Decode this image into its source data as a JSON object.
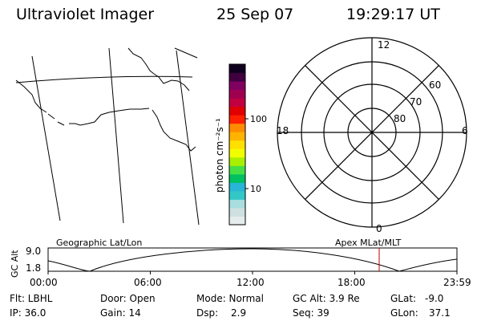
{
  "header": {
    "instrument": "Ultraviolet Imager",
    "date": "25 Sep 07",
    "time": "19:29:17 UT"
  },
  "colorbar": {
    "unit_label": "photon cm⁻²s⁻¹",
    "tick_100": "100",
    "tick_10": "10",
    "colors": [
      "#e6ecec",
      "#cfe0e0",
      "#a8dede",
      "#34c7c7",
      "#29b6d6",
      "#00c060",
      "#46e046",
      "#a8f000",
      "#f0ff00",
      "#ffe000",
      "#ffb400",
      "#ff8c00",
      "#ff2000",
      "#e00000",
      "#c00040",
      "#a00050",
      "#800060",
      "#400040",
      "#100020"
    ]
  },
  "polar": {
    "mlt_top": "12",
    "mlt_bottom": "0",
    "mlt_left": "18",
    "mlt_right": "6",
    "lat_60": "60",
    "lat_70": "70",
    "lat_80": "80"
  },
  "timeline": {
    "y_label": "GC Alt",
    "y_max": "9.0",
    "y_min": "1.8",
    "left_title": "Geographic Lat/Lon",
    "right_title": "Apex MLat/MLT",
    "ticks": [
      "00:00",
      "06:00",
      "12:00",
      "18:00",
      "23:59"
    ],
    "marker_color": "#c00000"
  },
  "info": {
    "flt": "Flt: LBHL",
    "ip": "IP: 36.0",
    "door": "Door: Open",
    "gain": "Gain: 14",
    "mode": "Mode: Normal",
    "dsp_label": "Dsp:",
    "dsp_value": "2.9",
    "gcalt": "GC Alt: 3.9 Re",
    "seq": "Seq: 39",
    "glat_label": "GLat:",
    "glat_value": "-9.0",
    "glon_label": "GLon:",
    "glon_value": "37.1"
  }
}
